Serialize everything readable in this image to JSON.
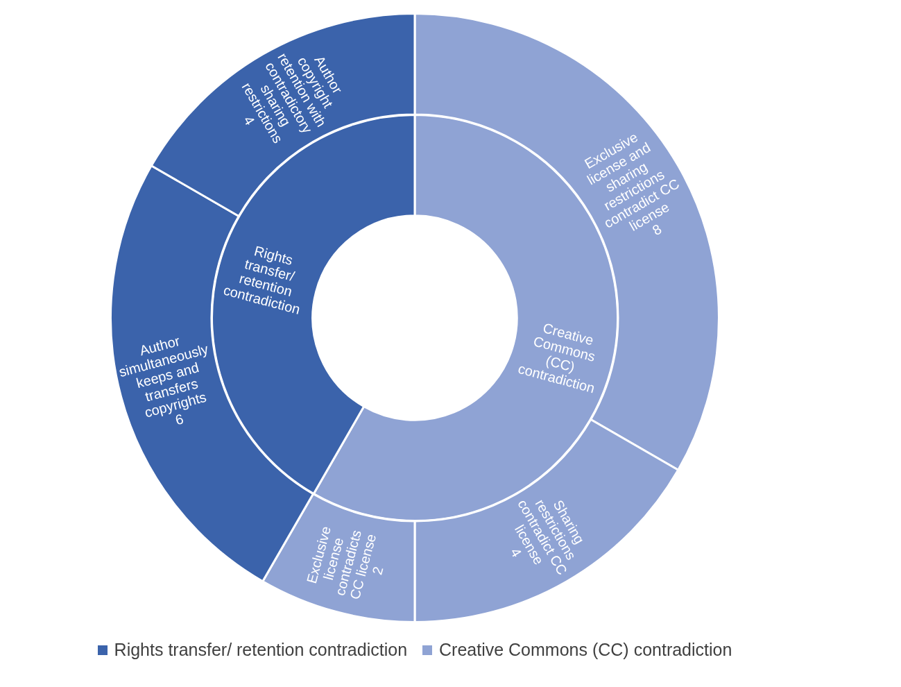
{
  "chart_data": [
    {
      "type": "donut",
      "categories": [
        "Creative Commons (CC) contradiction",
        "Rights transfer/ retention contradiction"
      ],
      "values": [
        58.3,
        41.7
      ],
      "colors": [
        "#8fa3d4",
        "#3b63ab"
      ],
      "legend": "bottom"
    },
    {
      "type": "donut",
      "categories": [
        "Exclusive license and sharing restrictions contradict CC license",
        "Sharing restrictions contradict CC license",
        "Exclusive license contradicts CC license",
        "Author simultaneously keeps and transfers copyrights",
        "Author copyright retention with contradictory sharing restrictions"
      ],
      "values": [
        8,
        4,
        2,
        6,
        4
      ],
      "colors": [
        "#8fa3d4",
        "#8fa3d4",
        "#8fa3d4",
        "#3b63ab",
        "#3b63ab"
      ],
      "data_labels": true
    }
  ]
}
